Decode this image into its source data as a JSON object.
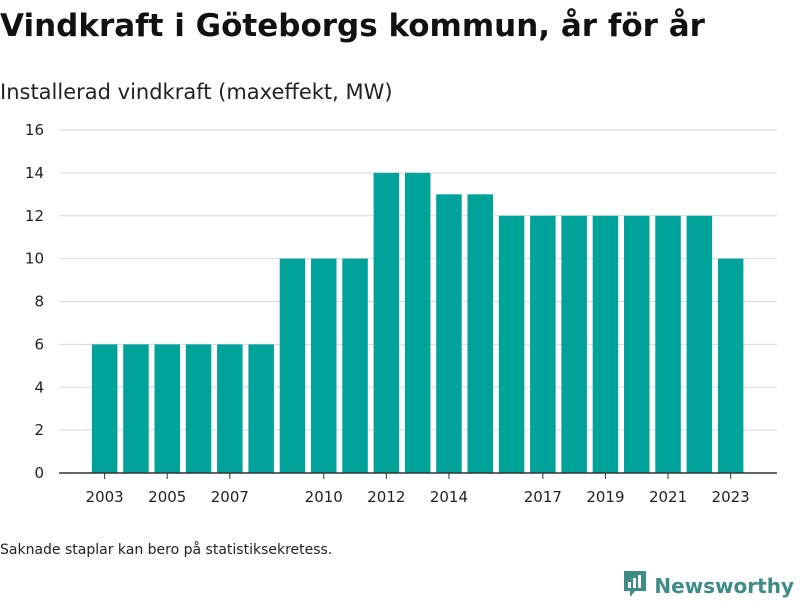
{
  "title": "Vindkraft i Göteborgs kommun, år för år",
  "subtitle": "Installerad vindkraft (maxeffekt, MW)",
  "footnote": "Saknade staplar kan bero på statistiksekretess.",
  "brand": {
    "name": "Newsworthy",
    "icon": "newsworthy-logo-icon",
    "color": "#3d8c85"
  },
  "chart_data": {
    "type": "bar",
    "categories": [
      "2003",
      "2004",
      "2005",
      "2006",
      "2007",
      "2008",
      "2009",
      "2010",
      "2011",
      "2012",
      "2013",
      "2014",
      "2015",
      "2016",
      "2017",
      "2018",
      "2019",
      "2020",
      "2021",
      "2022",
      "2023"
    ],
    "values": [
      6,
      6,
      6,
      6,
      6,
      6,
      10,
      10,
      10,
      14,
      14,
      13,
      13,
      12,
      12,
      12,
      12,
      12,
      12,
      12,
      10
    ],
    "x_tick_labels": [
      "2003",
      "2005",
      "2007",
      "2010",
      "2012",
      "2014",
      "2017",
      "2019",
      "2021",
      "2023"
    ],
    "y_ticks": [
      0,
      2,
      4,
      6,
      8,
      10,
      12,
      14,
      16
    ],
    "ylim": [
      0,
      16
    ],
    "xlabel": "",
    "ylabel": "",
    "grid": "horizontal",
    "bar_color": "#00a39a",
    "grid_color": "#d9d9d9",
    "axis_color": "#333333"
  }
}
